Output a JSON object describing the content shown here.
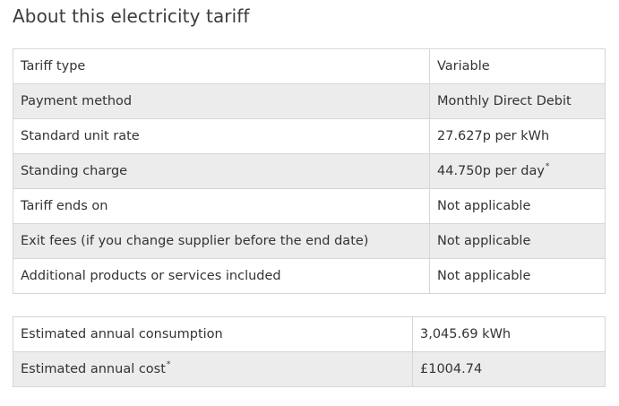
{
  "page": {
    "title": "About this electricity tariff"
  },
  "tariff_table": {
    "rows": [
      {
        "label": "Tariff type",
        "value": "Variable",
        "value_sup": ""
      },
      {
        "label": "Payment method",
        "value": "Monthly Direct Debit",
        "value_sup": ""
      },
      {
        "label": "Standard unit rate",
        "value": "27.627p per kWh",
        "value_sup": ""
      },
      {
        "label": "Standing charge",
        "value": "44.750p per day",
        "value_sup": "*"
      },
      {
        "label": "Tariff ends on",
        "value": "Not applicable",
        "value_sup": ""
      },
      {
        "label": "Exit fees (if you change supplier before the end date)",
        "value": "Not applicable",
        "value_sup": ""
      },
      {
        "label": "Additional products or services included",
        "value": "Not applicable",
        "value_sup": ""
      }
    ]
  },
  "cost_table": {
    "rows": [
      {
        "label": "Estimated annual consumption",
        "label_sup": "",
        "value": "3,045.69 kWh"
      },
      {
        "label": "Estimated annual cost",
        "label_sup": "*",
        "value": "£1004.74"
      }
    ]
  },
  "colors": {
    "shaded_row": "#ececec",
    "border": "#d6d6d6",
    "text": "#333333"
  }
}
